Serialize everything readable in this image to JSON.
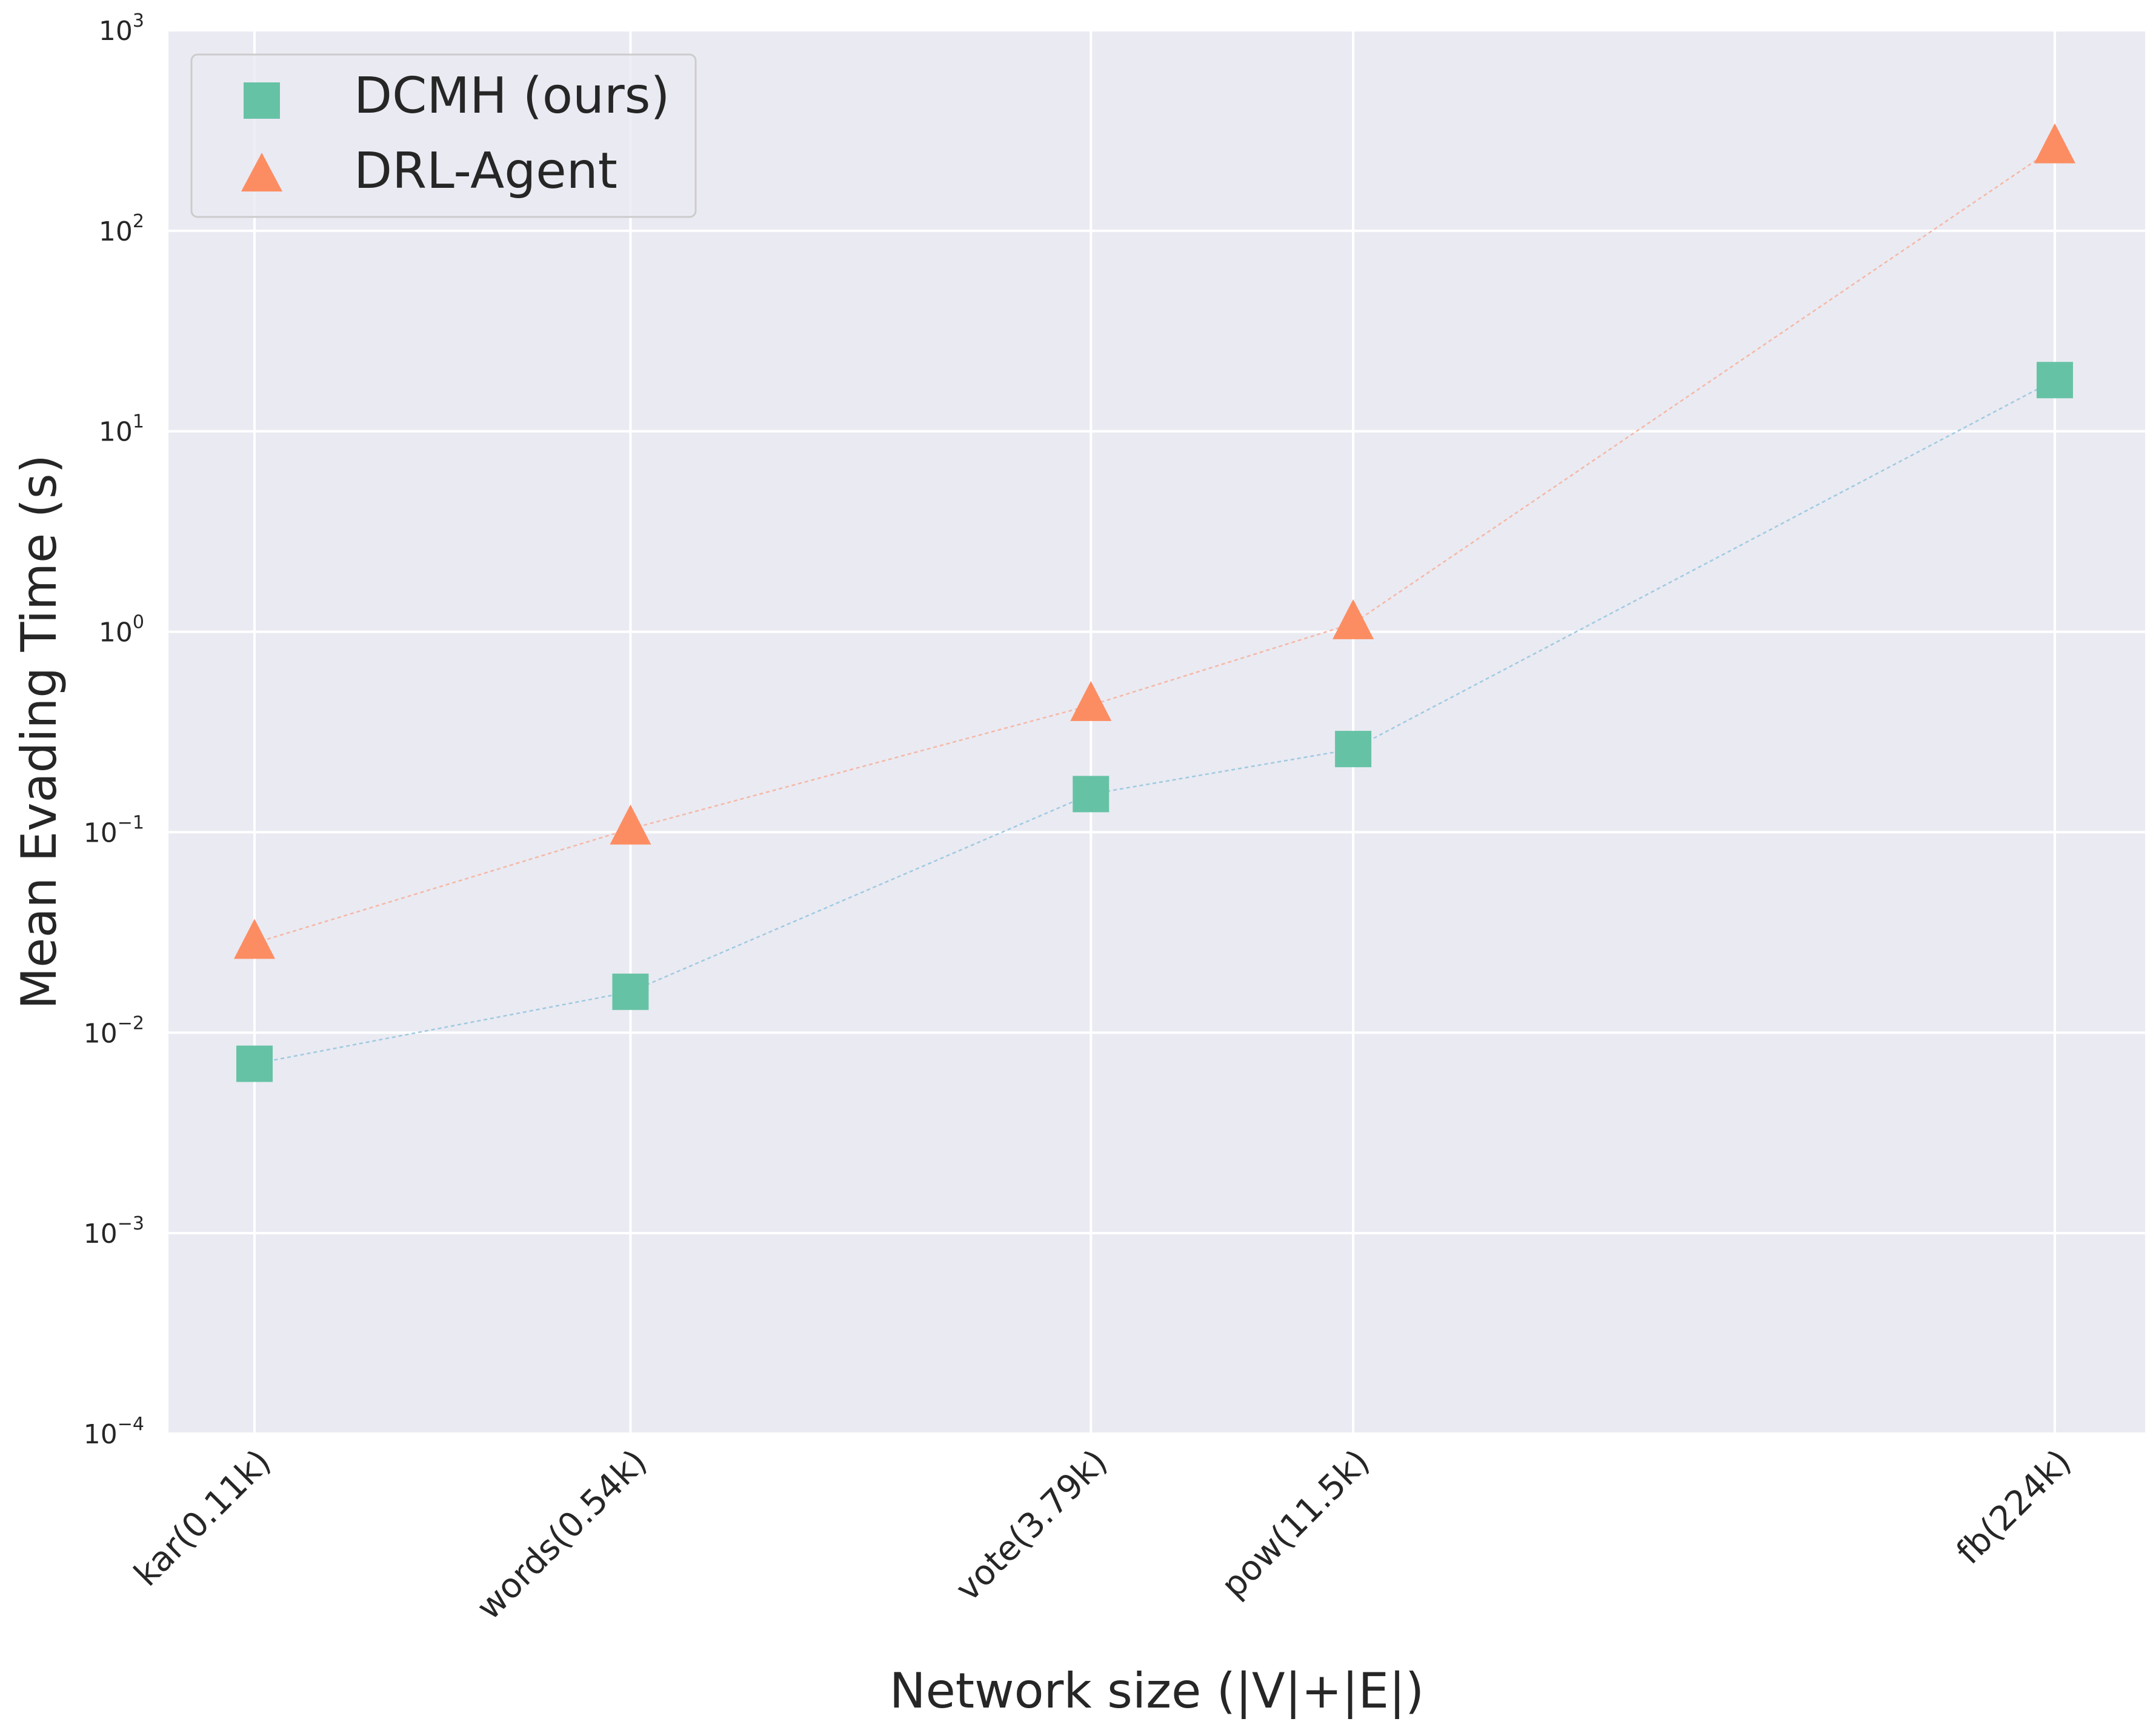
{
  "chart_data": {
    "type": "scatter",
    "title": "",
    "xlabel": "Network size (|V|+|E|)",
    "ylabel": "Mean Evading Time (s)",
    "yscale": "log",
    "ylim": [
      0.0001,
      1000
    ],
    "ytick_values": [
      0.0001,
      0.001,
      0.01,
      0.1,
      1,
      10,
      100,
      1000
    ],
    "ytick_labels": [
      {
        "base": "10",
        "exp": "−4"
      },
      {
        "base": "10",
        "exp": "−3"
      },
      {
        "base": "10",
        "exp": "−2"
      },
      {
        "base": "10",
        "exp": "−1"
      },
      {
        "base": "10",
        "exp": "0"
      },
      {
        "base": "10",
        "exp": "1"
      },
      {
        "base": "10",
        "exp": "2"
      },
      {
        "base": "10",
        "exp": "3"
      }
    ],
    "x_log_size_k": [
      0.11,
      0.54,
      3.79,
      11.5,
      224
    ],
    "categories": [
      "kar(0.11k)",
      "words(0.54k)",
      "vote(3.79k)",
      "pow(11.5k)",
      "fb(224k)"
    ],
    "grid": true,
    "legend_position": "upper-left",
    "series": [
      {
        "name": "DCMH (ours)",
        "marker": "square",
        "color": "#66c2a5",
        "line_color": "#9ecae1",
        "values": [
          0.007,
          0.016,
          0.155,
          0.26,
          18
        ]
      },
      {
        "name": "DRL-Agent",
        "marker": "triangle",
        "color": "#fc8d62",
        "line_color": "#f4b8a6",
        "values": [
          0.028,
          0.104,
          0.43,
          1.1,
          260
        ]
      }
    ]
  }
}
